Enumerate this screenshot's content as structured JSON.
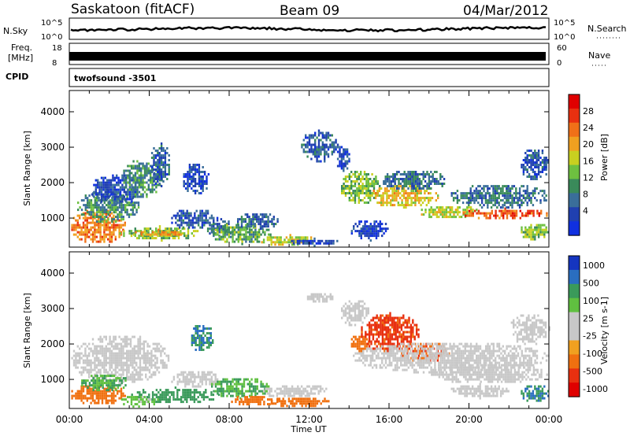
{
  "header": {
    "title": "Saskatoon (fitACF)",
    "beam": "Beam 09",
    "date": "04/Mar/2012"
  },
  "top_strip": {
    "nsky_label": "N.Sky",
    "nsearch_label": "N.Search",
    "nsky_ticks": [
      "10^5",
      "10^0"
    ],
    "nsearch_ticks": [
      "10^5",
      "10^0"
    ],
    "freq_label_1": "Freq.",
    "freq_label_2": "[MHz]",
    "freq_ticks": [
      "18",
      "8"
    ],
    "nave_label": "Nave",
    "nave_ticks": [
      "60",
      "0"
    ],
    "cpid_label": "CPID",
    "cpid_value": "twofsound -3501"
  },
  "colors": {
    "power": [
      "#1030e0",
      "#2040b0",
      "#3a6e9a",
      "#3a8a5a",
      "#6ec040",
      "#c8d020",
      "#f0a020",
      "#f07018",
      "#e83010",
      "#e00000"
    ],
    "velocity": [
      "#1535c0",
      "#2a6ec0",
      "#3a9a5a",
      "#60c040",
      "#c8c8c8",
      "#c8c8c8",
      "#f0a020",
      "#f07010",
      "#e83010",
      "#e00000"
    ]
  },
  "chart_data": [
    {
      "type": "heatmap",
      "name_key": "power",
      "ylabel": "Slant Range [km]",
      "colorbar_label": "Power [dB]",
      "colorbar_ticks": [
        "28",
        "24",
        "20",
        "16",
        "12",
        "8",
        "4"
      ],
      "ylim": [
        180,
        4600
      ],
      "yticks": [
        1000,
        2000,
        3000,
        4000
      ],
      "xlim": [
        0,
        24
      ],
      "blobs": [
        {
          "t0": 0.0,
          "t1": 2.8,
          "r0": 300,
          "r1": 1300,
          "v": 24
        },
        {
          "t0": 0.3,
          "t1": 3.5,
          "r0": 900,
          "r1": 1800,
          "v": 12
        },
        {
          "t0": 1.0,
          "t1": 3.6,
          "r0": 1400,
          "r1": 2300,
          "v": 7
        },
        {
          "t0": 2.6,
          "t1": 4.6,
          "r0": 1600,
          "r1": 2700,
          "v": 12
        },
        {
          "t0": 4.0,
          "t1": 5.0,
          "r0": 1900,
          "r1": 3200,
          "v": 8
        },
        {
          "t0": 2.5,
          "t1": 6.5,
          "r0": 400,
          "r1": 800,
          "v": 16
        },
        {
          "t0": 3.0,
          "t1": 5.8,
          "r0": 500,
          "r1": 700,
          "v": 22
        },
        {
          "t0": 5.0,
          "t1": 7.4,
          "r0": 700,
          "r1": 1300,
          "v": 8
        },
        {
          "t0": 5.6,
          "t1": 7.0,
          "r0": 1700,
          "r1": 2600,
          "v": 6
        },
        {
          "t0": 6.8,
          "t1": 8.3,
          "r0": 500,
          "r1": 1000,
          "v": 10
        },
        {
          "t0": 7.0,
          "t1": 10.2,
          "r0": 300,
          "r1": 900,
          "v": 14
        },
        {
          "t0": 8.3,
          "t1": 10.5,
          "r0": 700,
          "r1": 1200,
          "v": 9
        },
        {
          "t0": 9.5,
          "t1": 12.5,
          "r0": 250,
          "r1": 550,
          "v": 18
        },
        {
          "t0": 11.0,
          "t1": 13.5,
          "r0": 250,
          "r1": 450,
          "v": 7
        },
        {
          "t0": 11.5,
          "t1": 13.4,
          "r0": 2600,
          "r1": 3500,
          "v": 8
        },
        {
          "t0": 13.3,
          "t1": 14.0,
          "r0": 2300,
          "r1": 3100,
          "v": 7
        },
        {
          "t0": 13.5,
          "t1": 15.5,
          "r0": 1400,
          "r1": 2400,
          "v": 16
        },
        {
          "t0": 15.0,
          "t1": 18.5,
          "r0": 1300,
          "r1": 2000,
          "v": 20
        },
        {
          "t0": 15.5,
          "t1": 19.0,
          "r0": 1800,
          "r1": 2400,
          "v": 10
        },
        {
          "t0": 17.5,
          "t1": 20.5,
          "r0": 1000,
          "r1": 1400,
          "v": 18
        },
        {
          "t0": 19.5,
          "t1": 24.0,
          "r0": 1000,
          "r1": 1300,
          "v": 26
        },
        {
          "t0": 19.0,
          "t1": 24.0,
          "r0": 1300,
          "r1": 2000,
          "v": 10
        },
        {
          "t0": 22.5,
          "t1": 24.0,
          "r0": 2100,
          "r1": 3000,
          "v": 8
        },
        {
          "t0": 22.5,
          "t1": 24.0,
          "r0": 400,
          "r1": 900,
          "v": 16
        },
        {
          "t0": 14.0,
          "t1": 16.0,
          "r0": 400,
          "r1": 1000,
          "v": 5
        }
      ]
    },
    {
      "type": "heatmap",
      "name_key": "velocity",
      "ylabel": "Slant Range [km]",
      "colorbar_label": "Velocity [m s-1]",
      "colorbar_ticks": [
        "1000",
        "500",
        "100",
        "25",
        "-25",
        "-100",
        "-500",
        "-1000"
      ],
      "ylim": [
        180,
        4600
      ],
      "yticks": [
        1000,
        2000,
        3000,
        4000
      ],
      "xlim": [
        0,
        24
      ],
      "blobs": [
        {
          "t0": 0.0,
          "t1": 5.0,
          "r0": 900,
          "r1": 2300,
          "v": 0
        },
        {
          "t0": 0.0,
          "t1": 2.8,
          "r0": 300,
          "r1": 900,
          "v": -150
        },
        {
          "t0": 0.5,
          "t1": 3.0,
          "r0": 700,
          "r1": 1200,
          "v": 60
        },
        {
          "t0": 3.0,
          "t1": 7.5,
          "r0": 350,
          "r1": 800,
          "v": 200
        },
        {
          "t0": 2.5,
          "t1": 4.5,
          "r0": 250,
          "r1": 600,
          "v": 40
        },
        {
          "t0": 5.0,
          "t1": 7.5,
          "r0": 800,
          "r1": 1300,
          "v": 0
        },
        {
          "t0": 6.0,
          "t1": 7.2,
          "r0": 1800,
          "r1": 2600,
          "v": 300
        },
        {
          "t0": 7.0,
          "t1": 10.0,
          "r0": 500,
          "r1": 1100,
          "v": 60
        },
        {
          "t0": 8.0,
          "t1": 10.5,
          "r0": 300,
          "r1": 600,
          "v": -200
        },
        {
          "t0": 10.0,
          "t1": 13.0,
          "r0": 250,
          "r1": 550,
          "v": -150
        },
        {
          "t0": 9.5,
          "t1": 13.0,
          "r0": 500,
          "r1": 900,
          "v": 0
        },
        {
          "t0": 11.8,
          "t1": 13.2,
          "r0": 3200,
          "r1": 3500,
          "v": 0
        },
        {
          "t0": 13.5,
          "t1": 15.0,
          "r0": 2500,
          "r1": 3300,
          "v": 0
        },
        {
          "t0": 14.0,
          "t1": 15.0,
          "r0": 1800,
          "r1": 2300,
          "v": -400
        },
        {
          "t0": 14.5,
          "t1": 17.5,
          "r0": 1800,
          "r1": 2900,
          "v": -600
        },
        {
          "t0": 16.5,
          "t1": 19.0,
          "r0": 1500,
          "r1": 2100,
          "v": -500
        },
        {
          "t0": 14.0,
          "t1": 24.0,
          "r0": 1200,
          "r1": 2100,
          "v": 0
        },
        {
          "t0": 18.0,
          "t1": 24.0,
          "r0": 900,
          "r1": 1500,
          "v": 0
        },
        {
          "t0": 22.0,
          "t1": 24.0,
          "r0": 2000,
          "r1": 2900,
          "v": 0
        },
        {
          "t0": 22.5,
          "t1": 24.0,
          "r0": 400,
          "r1": 900,
          "v": 300
        },
        {
          "t0": 19.0,
          "t1": 22.0,
          "r0": 500,
          "r1": 900,
          "v": 0
        }
      ]
    }
  ],
  "xaxis": {
    "ticks": [
      "00:00",
      "04:00",
      "08:00",
      "12:00",
      "16:00",
      "20:00",
      "00:00"
    ],
    "label": "Time UT"
  }
}
